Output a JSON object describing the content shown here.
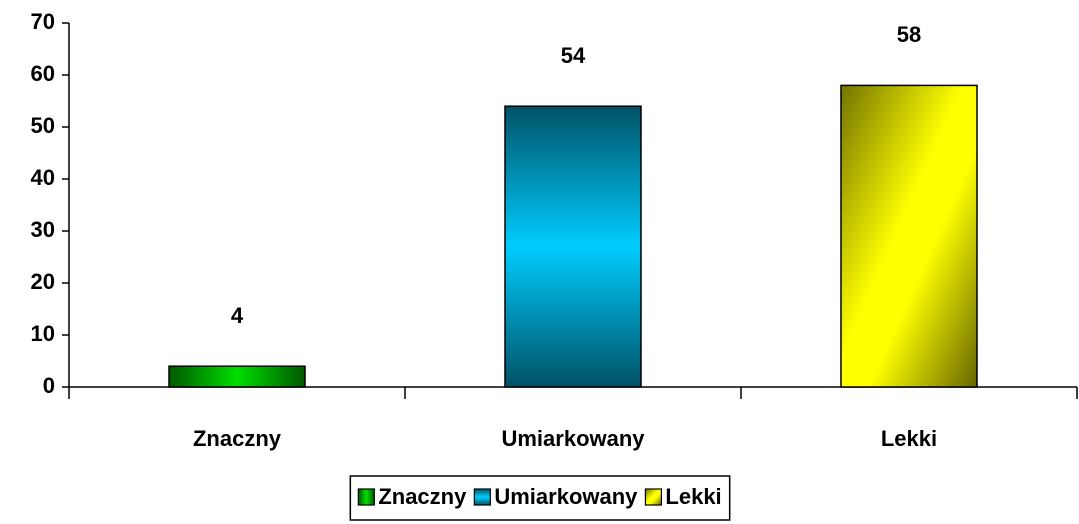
{
  "chart_data": {
    "type": "bar",
    "categories": [
      "Znaczny",
      "Umiarkowany",
      "Lekki"
    ],
    "values": [
      4,
      54,
      58
    ],
    "colors": [
      "#00dd00",
      "#00ccff",
      "#ffff00"
    ],
    "ylim": [
      0,
      70
    ],
    "yticks": [
      0,
      10,
      20,
      30,
      40,
      50,
      60,
      70
    ],
    "grid": false,
    "legend": "bottom"
  }
}
